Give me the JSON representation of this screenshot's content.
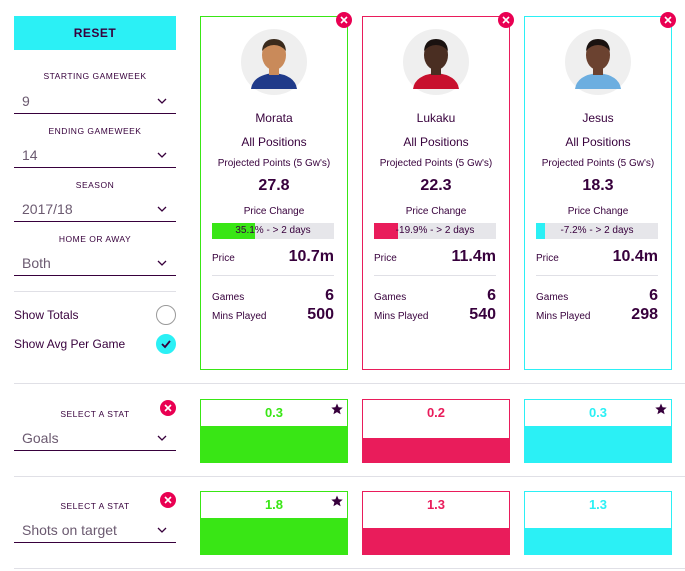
{
  "controls": {
    "reset_label": "RESET",
    "starting_gameweek": {
      "label": "STARTING GAMEWEEK",
      "value": "9"
    },
    "ending_gameweek": {
      "label": "ENDING GAMEWEEK",
      "value": "14"
    },
    "season": {
      "label": "SEASON",
      "value": "2017/18"
    },
    "home_or_away": {
      "label": "HOME OR AWAY",
      "value": "Both"
    },
    "show_totals": {
      "label": "Show Totals",
      "checked": false
    },
    "show_avg": {
      "label": "Show Avg Per Game",
      "checked": true
    }
  },
  "labels": {
    "position": "All Positions",
    "projected": "Projected Points (5 Gw's)",
    "price_change": "Price Change",
    "price": "Price",
    "games": "Games",
    "mins": "Mins Played"
  },
  "players": [
    {
      "name": "Morata",
      "color": "#39e615",
      "shirt": "#1f3a8a",
      "skin": "#c98a5a",
      "hair": "#3a2a1c",
      "projected": "27.8",
      "price_change_text": "35.1% - > 2 days",
      "price_change_pct": 35.1,
      "price": "10.7m",
      "games": "6",
      "mins": "500"
    },
    {
      "name": "Lukaku",
      "color": "#e91c5b",
      "shirt": "#c8102e",
      "skin": "#4a2e22",
      "hair": "#1a1210",
      "projected": "22.3",
      "price_change_text": "-19.9% - > 2 days",
      "price_change_pct": 19.9,
      "price": "11.4m",
      "games": "6",
      "mins": "540"
    },
    {
      "name": "Jesus",
      "color": "#2bf0f5",
      "shirt": "#6caee0",
      "skin": "#6b4230",
      "hair": "#1a1210",
      "projected": "18.3",
      "price_change_text": "-7.2% - > 2 days",
      "price_change_pct": 7.2,
      "price": "10.4m",
      "games": "6",
      "mins": "298"
    }
  ],
  "stats": [
    {
      "select_label": "SELECT A STAT",
      "stat": "Goals",
      "values": [
        "0.3",
        "0.2",
        "0.3"
      ],
      "fill_fraction": [
        1.0,
        0.67,
        1.0
      ],
      "star": [
        true,
        false,
        true
      ]
    },
    {
      "select_label": "SELECT A STAT",
      "stat": "Shots on target",
      "values": [
        "1.8",
        "1.3",
        "1.3"
      ],
      "fill_fraction": [
        1.0,
        0.72,
        0.72
      ],
      "star": [
        true,
        false,
        false
      ]
    }
  ]
}
